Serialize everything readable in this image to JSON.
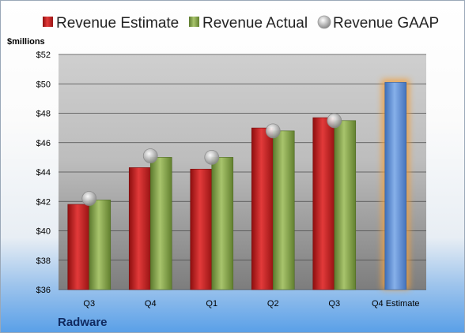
{
  "company": "Radware",
  "unit_label": "$millions",
  "colors": {
    "estimate": "#c81e1e",
    "actual": "#8aa852",
    "gaap": "#b8b8b8",
    "forecast": "#5b8fd6",
    "forecast_glow": "#f0a040"
  },
  "chart_data": {
    "type": "bar",
    "title": "",
    "xlabel": "",
    "ylabel": "$millions",
    "ylim": [
      36,
      52
    ],
    "y_ticks": [
      "$36",
      "$38",
      "$40",
      "$42",
      "$44",
      "$46",
      "$48",
      "$50",
      "$52"
    ],
    "y_tick_values": [
      36,
      38,
      40,
      42,
      44,
      46,
      48,
      50,
      52
    ],
    "categories": [
      "Q3",
      "Q4",
      "Q1",
      "Q2",
      "Q3",
      "Q4 Estimate"
    ],
    "legend_position": "top",
    "grid": true,
    "series": [
      {
        "name": "Revenue Estimate",
        "kind": "bar",
        "values": [
          41.8,
          44.3,
          44.2,
          47.0,
          47.7,
          50.1
        ]
      },
      {
        "name": "Revenue Actual",
        "kind": "bar",
        "values": [
          42.1,
          45.0,
          45.0,
          46.8,
          47.5,
          null
        ]
      },
      {
        "name": "Revenue GAAP",
        "kind": "marker",
        "values": [
          42.2,
          45.1,
          45.0,
          46.8,
          47.5,
          null
        ]
      }
    ]
  }
}
